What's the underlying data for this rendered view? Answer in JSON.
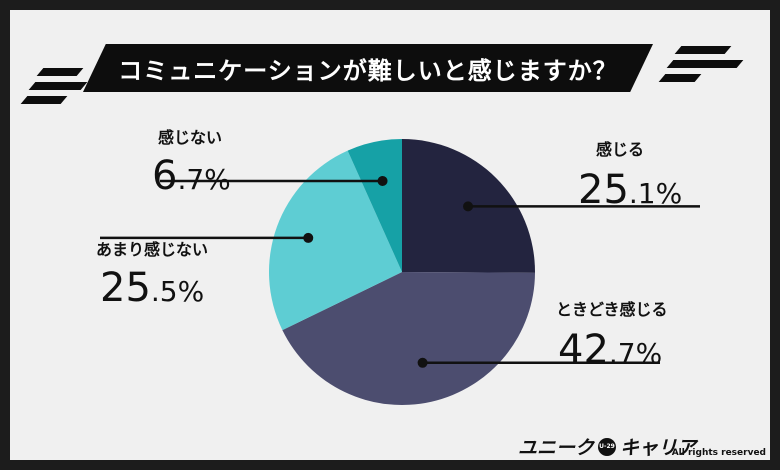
{
  "title": "コミュニケーションが難しいと感じますか？",
  "chart_data": {
    "type": "pie",
    "slices": [
      {
        "label": "感じる",
        "value": 25.1,
        "color": "#23243f"
      },
      {
        "label": "ときどき感じる",
        "value": 42.7,
        "color": "#4c4d6f"
      },
      {
        "label": "あまり感じない",
        "value": 25.5,
        "color": "#5ecdd3"
      },
      {
        "label": "感じない",
        "value": 6.7,
        "color": "#16a1a6"
      }
    ],
    "start": "12 o'clock",
    "direction": "clockwise"
  },
  "labels": [
    {
      "name": "感じる",
      "int": "25",
      "dec": ".1",
      "pct": "%"
    },
    {
      "name": "ときどき感じる",
      "int": "42",
      "dec": ".7",
      "pct": "%"
    },
    {
      "name": "あまり感じない",
      "int": "25",
      "dec": ".5",
      "pct": "%"
    },
    {
      "name": "感じない",
      "int": "6",
      "dec": ".7",
      "pct": "%"
    }
  ],
  "footer": {
    "logo": "ユニーク",
    "logo_badge": "U-29",
    "logo_suffix": "キャリア",
    "rights": "All rights reserved"
  }
}
